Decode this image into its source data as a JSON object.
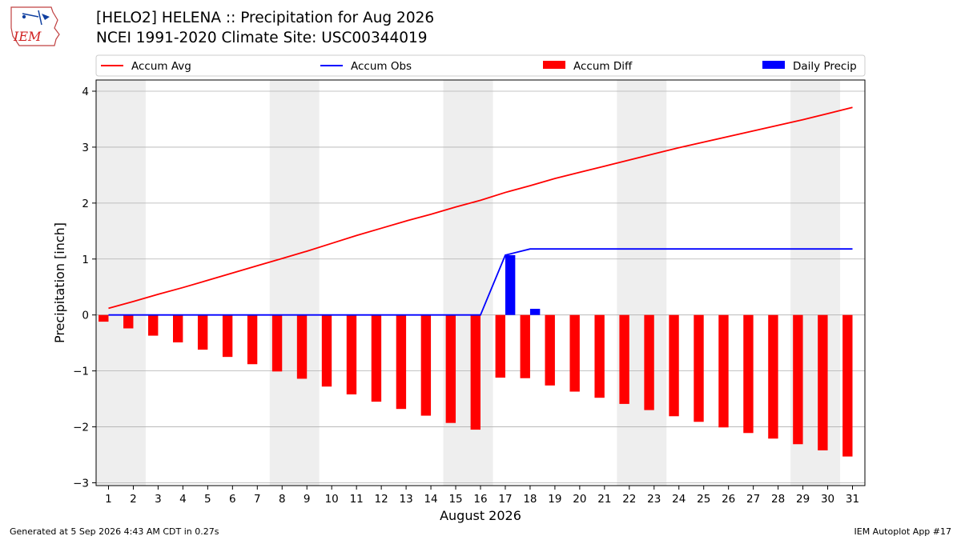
{
  "header": {
    "logo_text": "IEM",
    "title_line1": "[HELO2] HELENA :: Precipitation for Aug 2026",
    "title_line2": "NCEI 1991-2020 Climate Site: USC00344019"
  },
  "footer": {
    "generated": "Generated at 5 Sep 2026 4:43 AM CDT in 0.27s",
    "app": "IEM Autoplot App #17"
  },
  "colors": {
    "accum_avg": "#ff0000",
    "accum_obs": "#0000ff",
    "accum_diff": "#ff0000",
    "daily_precip": "#0000ff",
    "weekend_shade": "#eeeeee",
    "grid": "#b0b0b0"
  },
  "chart_data": {
    "type": "line",
    "xlabel": "August 2026",
    "ylabel": "Precipitation [inch]",
    "ylim": [
      -3.05,
      4.2
    ],
    "xlim": [
      0.5,
      31.5
    ],
    "yticks": [
      -3,
      -2,
      -1,
      0,
      1,
      2,
      3,
      4
    ],
    "ytick_labels": [
      "−3",
      "−2",
      "−1",
      "0",
      "1",
      "2",
      "3",
      "4"
    ],
    "x": [
      1,
      2,
      3,
      4,
      5,
      6,
      7,
      8,
      9,
      10,
      11,
      12,
      13,
      14,
      15,
      16,
      17,
      18,
      19,
      20,
      21,
      22,
      23,
      24,
      25,
      26,
      27,
      28,
      29,
      30,
      31
    ],
    "grid": "horizontal",
    "legend_position": "top",
    "legend": [
      "Accum Avg",
      "Accum Obs",
      "Accum Diff",
      "Daily Precip"
    ],
    "weekend_spans": [
      [
        0.5,
        2.5
      ],
      [
        7.5,
        9.5
      ],
      [
        14.5,
        16.5
      ],
      [
        21.5,
        23.5
      ],
      [
        28.5,
        30.5
      ]
    ],
    "series": [
      {
        "name": "Accum Avg",
        "type": "line",
        "values": [
          0.12,
          0.24,
          0.37,
          0.49,
          0.62,
          0.75,
          0.88,
          1.01,
          1.14,
          1.28,
          1.42,
          1.55,
          1.68,
          1.8,
          1.93,
          2.05,
          2.19,
          2.31,
          2.44,
          2.55,
          2.66,
          2.77,
          2.88,
          2.99,
          3.09,
          3.19,
          3.29,
          3.39,
          3.49,
          3.6,
          3.71
        ]
      },
      {
        "name": "Accum Obs",
        "type": "line",
        "values": [
          0,
          0,
          0,
          0,
          0,
          0,
          0,
          0,
          0,
          0,
          0,
          0,
          0,
          0,
          0,
          0,
          1.07,
          1.18,
          1.18,
          1.18,
          1.18,
          1.18,
          1.18,
          1.18,
          1.18,
          1.18,
          1.18,
          1.18,
          1.18,
          1.18,
          1.18
        ]
      },
      {
        "name": "Accum Diff",
        "type": "bar",
        "values": [
          -0.12,
          -0.24,
          -0.37,
          -0.49,
          -0.62,
          -0.75,
          -0.88,
          -1.01,
          -1.14,
          -1.28,
          -1.42,
          -1.55,
          -1.68,
          -1.8,
          -1.93,
          -2.05,
          -1.12,
          -1.13,
          -1.26,
          -1.37,
          -1.48,
          -1.59,
          -1.7,
          -1.81,
          -1.91,
          -2.01,
          -2.11,
          -2.21,
          -2.31,
          -2.42,
          -2.53
        ]
      },
      {
        "name": "Daily Precip",
        "type": "bar",
        "values": [
          0,
          0,
          0,
          0,
          0,
          0,
          0,
          0,
          0,
          0,
          0,
          0,
          0,
          0,
          0,
          0,
          1.07,
          0.11,
          0,
          0,
          0,
          0,
          0,
          0,
          0,
          0,
          0,
          0,
          0,
          0,
          0
        ]
      }
    ]
  }
}
